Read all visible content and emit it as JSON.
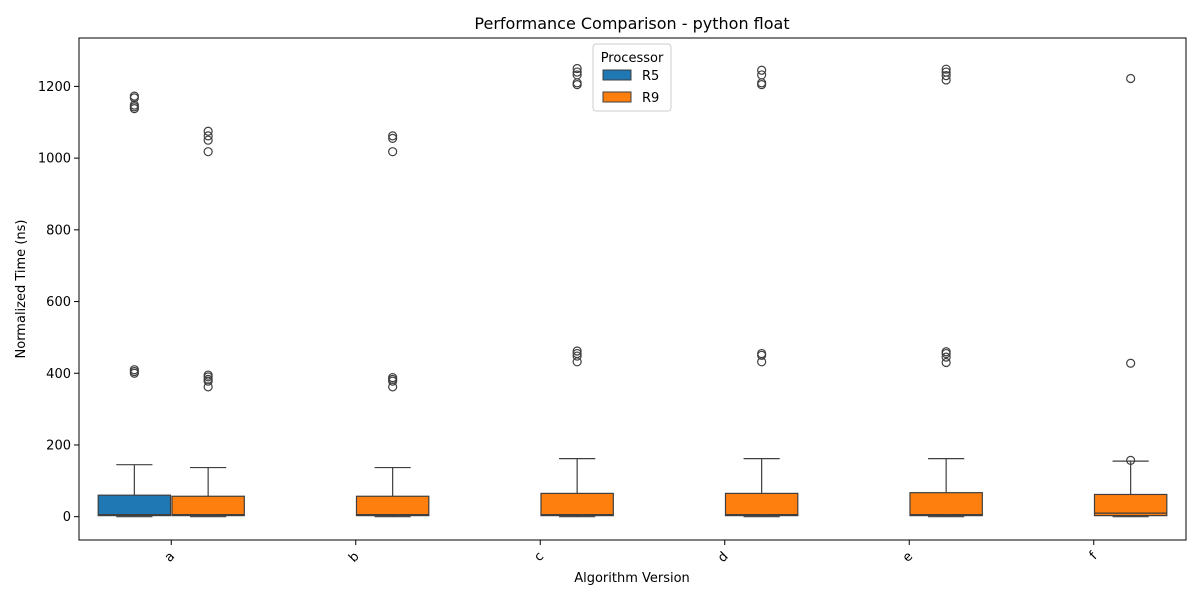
{
  "chart_data": {
    "type": "box",
    "title": "Performance Comparison - python float",
    "xlabel": "Algorithm Version",
    "ylabel": "Normalized Time (ns)",
    "ylim": [
      -65,
      1335
    ],
    "yticks": [
      0,
      200,
      400,
      600,
      800,
      1000,
      1200
    ],
    "categories": [
      "a",
      "b",
      "c",
      "d",
      "e",
      "f"
    ],
    "legend": {
      "title": "Processor",
      "placement": "top-center"
    },
    "grid": false,
    "series": [
      {
        "name": "R5",
        "color": "#1f77b4",
        "boxes": [
          {
            "category": "a",
            "q1": 3,
            "median": 6,
            "q3": 60,
            "whisker_low": 0,
            "whisker_high": 145,
            "outliers": [
              400,
              405,
              410,
              1138,
              1143,
              1148,
              1168,
              1173
            ]
          },
          null,
          null,
          null,
          null,
          null
        ]
      },
      {
        "name": "R9",
        "color": "#ff7f0e",
        "boxes": [
          {
            "category": "a",
            "q1": 3,
            "median": 6,
            "q3": 57,
            "whisker_low": 0,
            "whisker_high": 137,
            "outliers": [
              362,
              378,
              383,
              390,
              395,
              1018,
              1050,
              1062,
              1075
            ]
          },
          {
            "category": "b",
            "q1": 3,
            "median": 6,
            "q3": 57,
            "whisker_low": 0,
            "whisker_high": 137,
            "outliers": [
              362,
              378,
              383,
              388,
              1018,
              1055,
              1062
            ]
          },
          {
            "category": "c",
            "q1": 3,
            "median": 6,
            "q3": 65,
            "whisker_low": 0,
            "whisker_high": 162,
            "outliers": [
              432,
              448,
              455,
              462,
              1205,
              1210,
              1232,
              1240,
              1250
            ]
          },
          {
            "category": "d",
            "q1": 3,
            "median": 6,
            "q3": 65,
            "whisker_low": 0,
            "whisker_high": 162,
            "outliers": [
              432,
              450,
              455,
              1205,
              1210,
              1232,
              1245
            ]
          },
          {
            "category": "e",
            "q1": 3,
            "median": 6,
            "q3": 67,
            "whisker_low": 0,
            "whisker_high": 162,
            "outliers": [
              430,
              445,
              455,
              460,
              1218,
              1230,
              1240,
              1248
            ]
          },
          {
            "category": "f",
            "q1": 3,
            "median": 10,
            "q3": 62,
            "whisker_low": 0,
            "whisker_high": 155,
            "outliers": [
              157,
              428,
              1222
            ]
          }
        ]
      }
    ]
  }
}
